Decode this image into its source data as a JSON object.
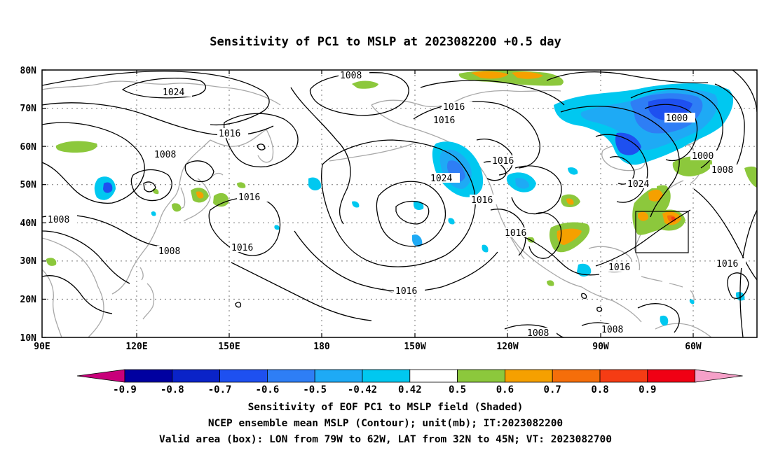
{
  "title": "Sensitivity of PC1 to MSLP at 2023082200 +0.5 day",
  "map": {
    "lat_ticks": [
      "80N",
      "70N",
      "60N",
      "50N",
      "40N",
      "30N",
      "20N",
      "10N"
    ],
    "lon_ticks": [
      "90E",
      "120E",
      "150E",
      "180",
      "150W",
      "120W",
      "90W",
      "60W"
    ],
    "contour_labels": [
      "1024",
      "1008",
      "1016",
      "1016",
      "1008",
      "1016",
      "1016",
      "1024",
      "1016",
      "1016",
      "1008",
      "1008",
      "1016",
      "1016",
      "1016",
      "1016",
      "1000",
      "1000",
      "1008",
      "1024",
      "1016",
      "1008",
      "1008"
    ],
    "valid_box": {
      "lon_from": "79W",
      "lon_to": "62W",
      "lat_from": "32N",
      "lat_to": "45N"
    }
  },
  "colorbar": {
    "labels": [
      "-0.9",
      "-0.8",
      "-0.7",
      "-0.6",
      "-0.5",
      "-0.42",
      "0.42",
      "0.5",
      "0.6",
      "0.7",
      "0.8",
      "0.9"
    ],
    "colors": [
      "#0000a0",
      "#0a23c8",
      "#1e50f0",
      "#2e7ef5",
      "#1eaaf5",
      "#00c8f0",
      "#ffffff",
      "#8cc83c",
      "#f5a000",
      "#f56e0a",
      "#f53c14",
      "#f00014"
    ],
    "under_color": "#c8007a",
    "over_color": "#f5a0c8"
  },
  "captions": {
    "line1": "Sensitivity of EOF PC1 to MSLP field (Shaded)",
    "line2": "NCEP ensemble mean MSLP (Contour); unit(mb); IT:2023082200",
    "line3": "Valid area (box): LON from 79W to 62W, LAT from 32N to 45N; VT: 2023082700"
  }
}
